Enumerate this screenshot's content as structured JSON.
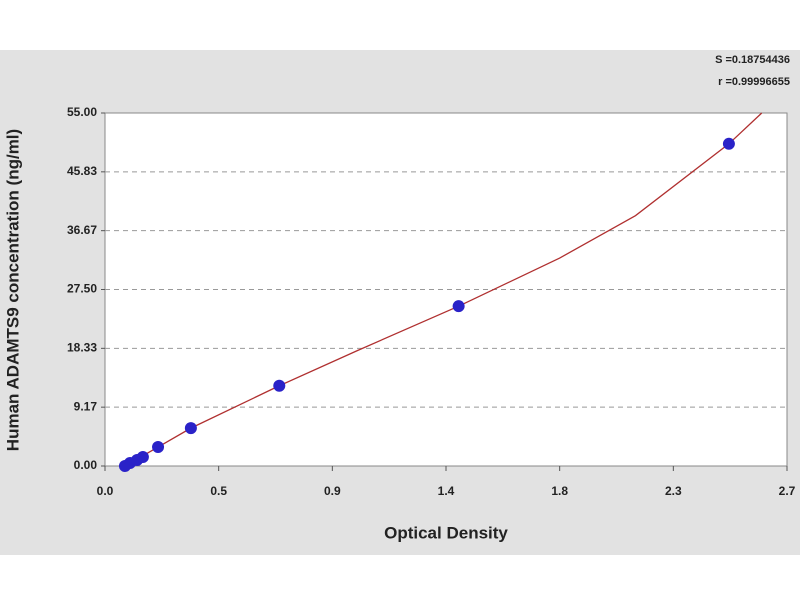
{
  "chart_data": {
    "type": "scatter",
    "x_label": "Optical Density",
    "y_label": "Human ADAMTS9 concentration (ng/ml)",
    "annotations": [
      "S =0.18754436",
      "r =0.99996655"
    ],
    "xlim": [
      0,
      2.7
    ],
    "xticks": [
      {
        "value": 0,
        "label": "0.0"
      },
      {
        "value": 0.45,
        "label": "0.5"
      },
      {
        "value": 0.9,
        "label": "0.9"
      },
      {
        "value": 1.35,
        "label": "1.4"
      },
      {
        "value": 1.8,
        "label": "1.8"
      },
      {
        "value": 2.25,
        "label": "2.3"
      },
      {
        "value": 2.7,
        "label": "2.7"
      }
    ],
    "ylim": [
      0,
      55
    ],
    "yticks": [
      {
        "value": 0,
        "label": "0.00"
      },
      {
        "value": 9.1667,
        "label": "9.17"
      },
      {
        "value": 18.333,
        "label": "18.33"
      },
      {
        "value": 27.5,
        "label": "27.50"
      },
      {
        "value": 36.667,
        "label": "36.67"
      },
      {
        "value": 45.833,
        "label": "45.83"
      },
      {
        "value": 55,
        "label": "55.00"
      }
    ],
    "grid": true,
    "points": {
      "color": "#2a22c8",
      "x": [
        0.079,
        0.099,
        0.127,
        0.15,
        0.21,
        0.34,
        0.69,
        1.4,
        2.47
      ],
      "y": [
        0,
        0.47,
        0.93,
        1.4,
        2.96,
        5.9,
        12.5,
        24.9,
        50.2
      ]
    },
    "curve": {
      "color": "#b03030",
      "x": [
        0.079,
        0.21,
        0.34,
        0.69,
        1.0,
        1.4,
        1.8,
        2.1,
        2.47,
        2.6
      ],
      "y": [
        0,
        2.96,
        5.9,
        12.5,
        18.0,
        24.9,
        32.4,
        39.0,
        50.2,
        55
      ]
    }
  }
}
